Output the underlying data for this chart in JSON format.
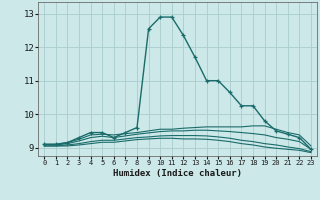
{
  "title": "",
  "xlabel": "Humidex (Indice chaleur)",
  "xlim": [
    -0.5,
    23.5
  ],
  "ylim": [
    8.75,
    13.35
  ],
  "xticks": [
    0,
    1,
    2,
    3,
    4,
    5,
    6,
    7,
    8,
    9,
    10,
    11,
    12,
    13,
    14,
    15,
    16,
    17,
    18,
    19,
    20,
    21,
    22,
    23
  ],
  "yticks": [
    9,
    10,
    11,
    12,
    13
  ],
  "background_color": "#cce8e8",
  "grid_color": "#aacccc",
  "line_color": "#1a6b6b",
  "series": [
    {
      "x": [
        0,
        1,
        2,
        3,
        4,
        5,
        6,
        7,
        8,
        9,
        10,
        11,
        12,
        13,
        14,
        15,
        16,
        17,
        18,
        19,
        20,
        21,
        22,
        23
      ],
      "y": [
        9.1,
        9.1,
        9.15,
        9.3,
        9.45,
        9.45,
        9.3,
        9.45,
        9.6,
        12.55,
        12.9,
        12.9,
        12.35,
        11.7,
        11.0,
        11.0,
        10.65,
        10.25,
        10.25,
        9.8,
        9.5,
        9.4,
        9.3,
        8.95
      ],
      "marker": "+",
      "linestyle": "-",
      "linewidth": 1.0
    },
    {
      "x": [
        0,
        1,
        2,
        3,
        4,
        5,
        6,
        7,
        8,
        9,
        10,
        11,
        12,
        13,
        14,
        15,
        16,
        17,
        18,
        19,
        20,
        21,
        22,
        23
      ],
      "y": [
        9.1,
        9.1,
        9.15,
        9.25,
        9.38,
        9.4,
        9.38,
        9.42,
        9.45,
        9.5,
        9.55,
        9.55,
        9.58,
        9.6,
        9.62,
        9.62,
        9.62,
        9.62,
        9.65,
        9.65,
        9.55,
        9.45,
        9.38,
        9.05
      ],
      "marker": null,
      "linestyle": "-",
      "linewidth": 0.8
    },
    {
      "x": [
        0,
        1,
        2,
        3,
        4,
        5,
        6,
        7,
        8,
        9,
        10,
        11,
        12,
        13,
        14,
        15,
        16,
        17,
        18,
        19,
        20,
        21,
        22,
        23
      ],
      "y": [
        9.08,
        9.08,
        9.12,
        9.2,
        9.3,
        9.34,
        9.3,
        9.35,
        9.4,
        9.44,
        9.48,
        9.5,
        9.5,
        9.52,
        9.52,
        9.5,
        9.48,
        9.45,
        9.42,
        9.38,
        9.3,
        9.25,
        9.18,
        8.95
      ],
      "marker": null,
      "linestyle": "-",
      "linewidth": 0.8
    },
    {
      "x": [
        0,
        1,
        2,
        3,
        4,
        5,
        6,
        7,
        8,
        9,
        10,
        11,
        12,
        13,
        14,
        15,
        16,
        17,
        18,
        19,
        20,
        21,
        22,
        23
      ],
      "y": [
        9.05,
        9.05,
        9.08,
        9.12,
        9.18,
        9.22,
        9.22,
        9.26,
        9.3,
        9.32,
        9.35,
        9.36,
        9.36,
        9.36,
        9.35,
        9.32,
        9.28,
        9.22,
        9.18,
        9.12,
        9.08,
        9.02,
        8.97,
        8.88
      ],
      "marker": null,
      "linestyle": "-",
      "linewidth": 0.8
    },
    {
      "x": [
        0,
        1,
        2,
        3,
        4,
        5,
        6,
        7,
        8,
        9,
        10,
        11,
        12,
        13,
        14,
        15,
        16,
        17,
        18,
        19,
        20,
        21,
        22,
        23
      ],
      "y": [
        9.05,
        9.05,
        9.05,
        9.08,
        9.12,
        9.16,
        9.16,
        9.2,
        9.24,
        9.26,
        9.28,
        9.28,
        9.26,
        9.26,
        9.25,
        9.22,
        9.18,
        9.12,
        9.08,
        9.02,
        8.98,
        8.95,
        8.92,
        8.85
      ],
      "marker": null,
      "linestyle": "-",
      "linewidth": 0.8
    }
  ]
}
